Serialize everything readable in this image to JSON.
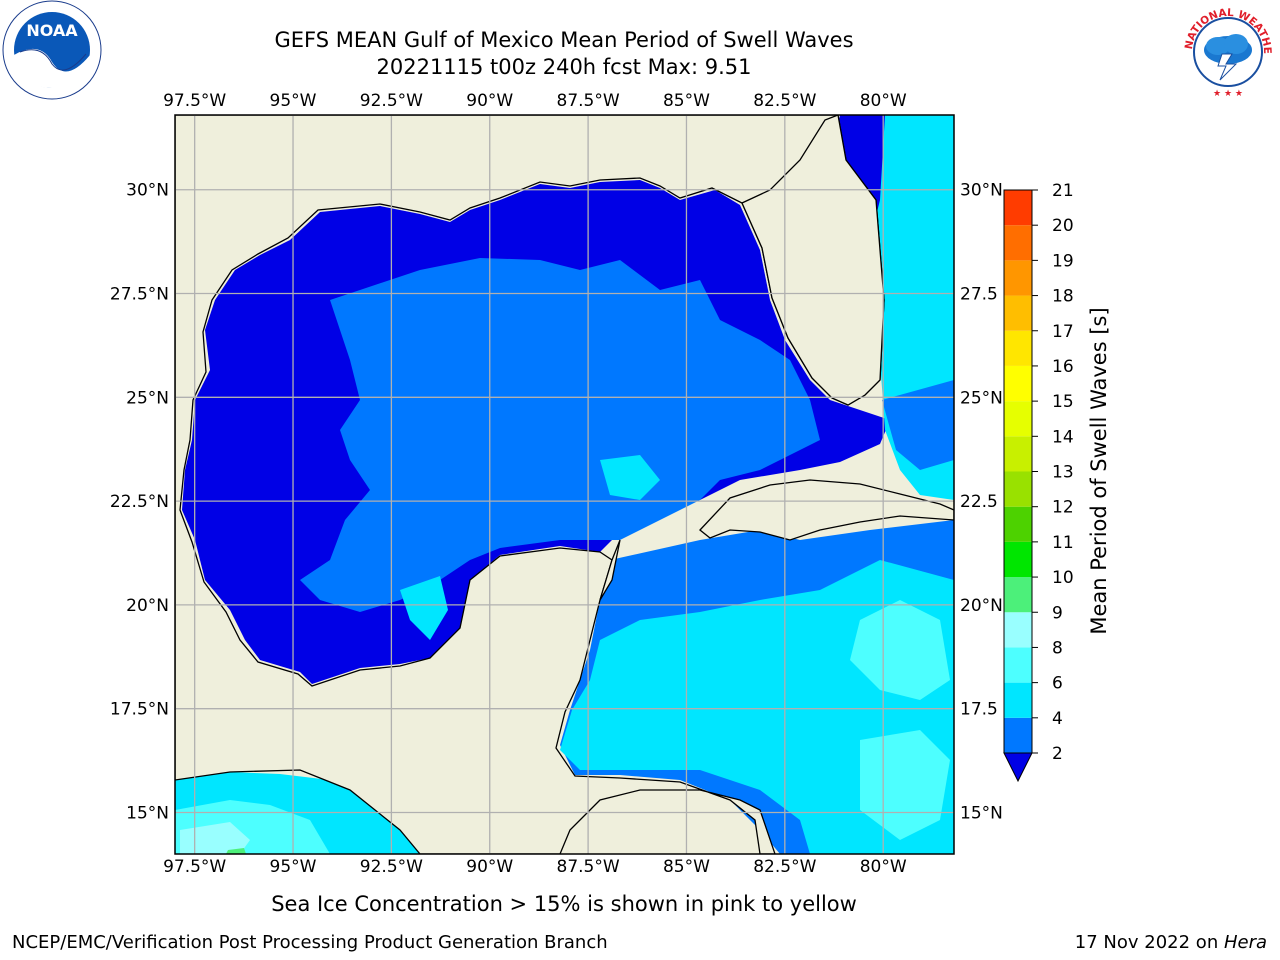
{
  "title": {
    "line1": "GEFS MEAN Gulf of Mexico Mean Period of Swell Waves",
    "line2": "20221115 t00z 240h fcst   Max: 9.51"
  },
  "map": {
    "lon_range": [
      -98,
      -78.2
    ],
    "lat_range": [
      14.0,
      31.8
    ],
    "lon_ticks": [
      -97.5,
      -95,
      -92.5,
      -90,
      -87.5,
      -85,
      -82.5,
      -80
    ],
    "lon_tick_labels": [
      "97.5°W",
      "95°W",
      "92.5°W",
      "90°W",
      "87.5°W",
      "85°W",
      "82.5°W",
      "80°W"
    ],
    "lat_ticks": [
      30,
      27.5,
      25,
      22.5,
      20,
      17.5,
      15
    ],
    "lat_tick_labels_left": [
      "30°N",
      "27.5°N",
      "25°N",
      "22.5°N",
      "20°N",
      "17.5°N",
      "15°N"
    ],
    "lat_tick_labels_right": [
      "30°N",
      "27.5",
      "25°N",
      "22.5",
      "20°N",
      "17.5",
      "15°N"
    ],
    "gridlines": true,
    "land_color": "#efefdc",
    "grid_color": "#b0b0b0"
  },
  "colorbar": {
    "label": "Mean Period of Swell Waves [s]",
    "levels": [
      2,
      4,
      6,
      8,
      9,
      10,
      11,
      12,
      13,
      14,
      15,
      16,
      17,
      18,
      19,
      20,
      21
    ],
    "tick_labels": [
      "2",
      "4",
      "6",
      "8",
      "9",
      "10",
      "11",
      "12",
      "13",
      "14",
      "15",
      "16",
      "17",
      "18",
      "19",
      "20",
      "21"
    ],
    "colors": [
      "#0078ff",
      "#00e6ff",
      "#4dffff",
      "#99ffff",
      "#4cf07a",
      "#00e600",
      "#4dd200",
      "#99e100",
      "#c8f000",
      "#e6ff00",
      "#ffff00",
      "#ffe600",
      "#ffbe00",
      "#ff9600",
      "#ff6e00",
      "#ff3c00",
      "#ff0000"
    ],
    "under_color": "#0000e6",
    "extend": "min"
  },
  "caption": "Sea Ice Concentration > 15% is shown in pink to yellow",
  "footer": {
    "left": "NCEP/EMC/Verification Post Processing Product Generation Branch",
    "right_prefix": "17 Nov 2022 on ",
    "right_machine": "Hera"
  },
  "logos": {
    "noaa_text": "NOAA",
    "nws_text": "NATIONAL WEATHER SERVICE"
  }
}
